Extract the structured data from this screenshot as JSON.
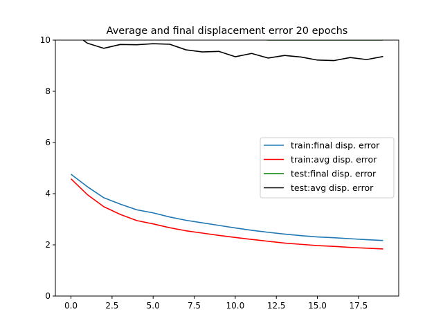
{
  "chart_data": {
    "type": "line",
    "title": "Average and final displacement error 20 epochs",
    "xlabel": "",
    "ylabel": "",
    "xlim": [
      -0.95,
      19.95
    ],
    "ylim": [
      0,
      10
    ],
    "xticks": [
      0.0,
      2.5,
      5.0,
      7.5,
      10.0,
      12.5,
      15.0,
      17.5
    ],
    "xtick_labels": [
      "0.0",
      "2.5",
      "5.0",
      "7.5",
      "10.0",
      "12.5",
      "15.0",
      "17.5"
    ],
    "yticks": [
      0,
      2,
      4,
      6,
      8,
      10
    ],
    "ytick_labels": [
      "0",
      "2",
      "4",
      "6",
      "8",
      "10"
    ],
    "grid": false,
    "legend_position": "center-right",
    "x": [
      0,
      1,
      2,
      3,
      4,
      5,
      6,
      7,
      8,
      9,
      10,
      11,
      12,
      13,
      14,
      15,
      16,
      17,
      18,
      19
    ],
    "series": [
      {
        "name": "train:final disp. error",
        "color": "#1f77b4",
        "values": [
          4.76,
          4.27,
          3.84,
          3.59,
          3.37,
          3.25,
          3.09,
          2.96,
          2.86,
          2.76,
          2.66,
          2.57,
          2.49,
          2.42,
          2.36,
          2.31,
          2.28,
          2.24,
          2.2,
          2.17
        ]
      },
      {
        "name": "train:avg disp. error",
        "color": "#ff0000",
        "values": [
          4.58,
          3.96,
          3.49,
          3.19,
          2.95,
          2.82,
          2.67,
          2.55,
          2.46,
          2.37,
          2.29,
          2.21,
          2.14,
          2.07,
          2.02,
          1.97,
          1.94,
          1.9,
          1.87,
          1.84
        ]
      },
      {
        "name": "test:final disp. error",
        "color": "#008000",
        "values": [
          10.5,
          10.3,
          10.2,
          10.25,
          10.25,
          10.25,
          10.25,
          10.15,
          10.1,
          10.1,
          10.05,
          10.05,
          10.0,
          10.0,
          10.0,
          10.0,
          10.0,
          10.0,
          10.0,
          10.0
        ]
      },
      {
        "name": "test:avg disp. error",
        "color": "#000000",
        "values": [
          10.35,
          9.88,
          9.68,
          9.83,
          9.82,
          9.86,
          9.84,
          9.62,
          9.54,
          9.56,
          9.35,
          9.48,
          9.3,
          9.4,
          9.34,
          9.22,
          9.2,
          9.32,
          9.24,
          9.36
        ]
      }
    ]
  }
}
